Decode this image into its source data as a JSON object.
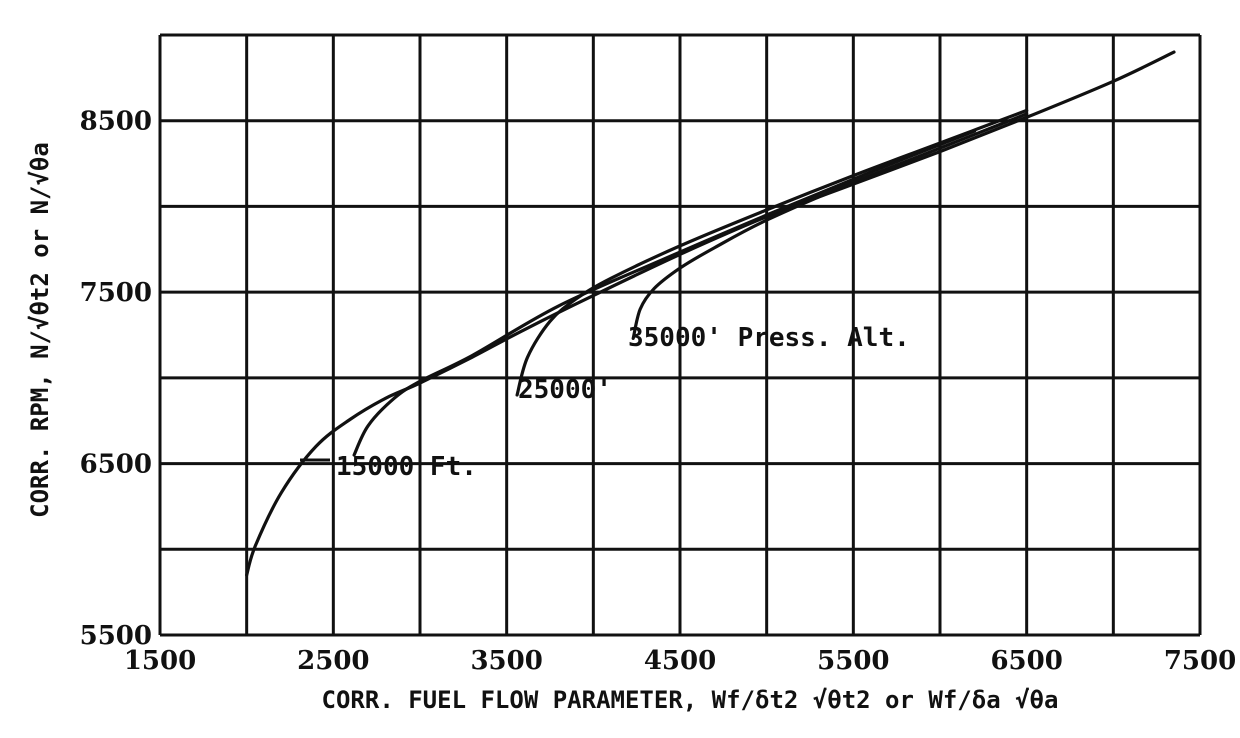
{
  "chart_data": {
    "type": "line",
    "xlabel": "CORR. FUEL FLOW PARAMETER, Wf/δt2 √θt2 or Wf/δa √θa",
    "ylabel": "CORR. RPM, N/√θt2 or N/√θa",
    "xlim": [
      1500,
      7500
    ],
    "ylim": [
      5500,
      9000
    ],
    "x_ticks": [
      1500,
      2500,
      3500,
      4500,
      5500,
      6500,
      7500
    ],
    "y_ticks": [
      5500,
      6500,
      7500,
      8500
    ],
    "grid": true,
    "series": [
      {
        "name": "",
        "x": [
          2000,
          2050,
          2200,
          2400,
          2600,
          2800,
          3000,
          3300,
          3600,
          4000,
          4500,
          5000,
          5500,
          6000,
          6500,
          7000,
          7350
        ],
        "y": [
          5850,
          6020,
          6330,
          6600,
          6760,
          6880,
          6970,
          7120,
          7280,
          7480,
          7720,
          7940,
          8130,
          8320,
          8520,
          8730,
          8900
        ]
      },
      {
        "name": "15000 Ft.",
        "x": [
          2620,
          2700,
          2850,
          3000,
          3300,
          3800,
          4400,
          5000,
          5600,
          6200
        ],
        "y": [
          6550,
          6720,
          6880,
          6980,
          7130,
          7420,
          7690,
          7950,
          8200,
          8440
        ]
      },
      {
        "name": "25000'",
        "x": [
          3560,
          3620,
          3750,
          3900,
          4100,
          4500,
          5000,
          5500,
          6000,
          6500
        ],
        "y": [
          6900,
          7120,
          7330,
          7460,
          7580,
          7770,
          7980,
          8180,
          8370,
          8560
        ]
      },
      {
        "name": "35000' Press. Alt.",
        "x": [
          4230,
          4270,
          4350,
          4500,
          4700,
          5000,
          5500,
          6000,
          6500
        ],
        "y": [
          7230,
          7400,
          7520,
          7640,
          7760,
          7920,
          8140,
          8340,
          8540
        ]
      }
    ],
    "annotations": [
      "15000 Ft.",
      "25000'",
      "35000' Press. Alt."
    ]
  }
}
